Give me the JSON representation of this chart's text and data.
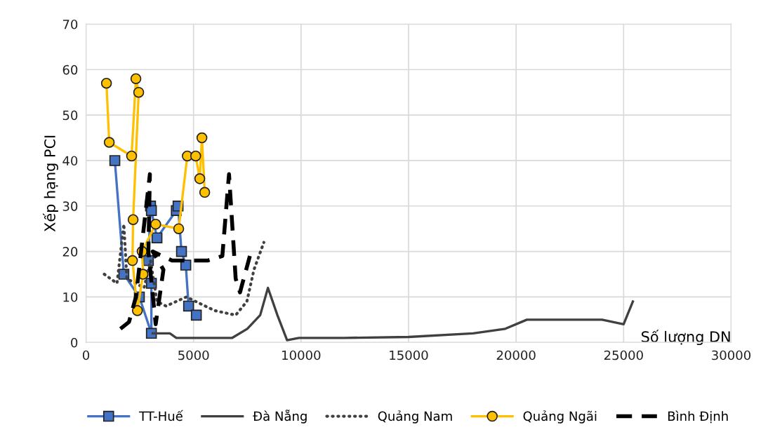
{
  "chart_data": {
    "type": "line",
    "xlabel": "Số lượng DN",
    "ylabel": "Xếp hạng PCI",
    "xlim": [
      0,
      30000
    ],
    "xticks": [
      0,
      5000,
      10000,
      15000,
      20000,
      25000,
      30000
    ],
    "ylim": [
      0,
      70
    ],
    "yticks": [
      0,
      10,
      20,
      30,
      40,
      50,
      60,
      70
    ],
    "grid": true,
    "legend": "bottom",
    "series": [
      {
        "name": "TT-Huế",
        "color": "#4472c4",
        "marker": "square",
        "line_style": "solid",
        "x": [
          1340,
          1760,
          2480,
          3040,
          3040,
          2900,
          3000,
          3040,
          3300,
          4200,
          4280,
          4440,
          4640,
          4770,
          5130
        ],
        "values": [
          40,
          15,
          10,
          2,
          13,
          18,
          30,
          29,
          23,
          29,
          30,
          20,
          17,
          8,
          6
        ]
      },
      {
        "name": "Đà Nẵng",
        "color": "#404040",
        "marker": "none",
        "line_style": "solid",
        "x": [
          3100,
          3900,
          4200,
          5000,
          6000,
          6800,
          7500,
          8100,
          8460,
          8900,
          9350,
          9900,
          12000,
          15000,
          18000,
          19500,
          20500,
          22000,
          24000,
          25000,
          25430
        ],
        "values": [
          2,
          2,
          1,
          1,
          1,
          1,
          3,
          6,
          12,
          6,
          0.5,
          1,
          1,
          1.2,
          2,
          3,
          5,
          5,
          5,
          4,
          9
        ]
      },
      {
        "name": "Quảng Nam",
        "color": "#404040",
        "marker": "none",
        "line_style": "dotted",
        "x": [
          850,
          1440,
          1760,
          1900,
          2700,
          3000,
          3300,
          3720,
          4670,
          5980,
          6960,
          7480,
          7810,
          8270
        ],
        "values": [
          15,
          13,
          26,
          14,
          12,
          18,
          9,
          8,
          10,
          7,
          6,
          9,
          16,
          22
        ]
      },
      {
        "name": "Quảng Ngãi",
        "color": "#ffc000",
        "marker": "circle",
        "line_style": "solid",
        "x": [
          950,
          1080,
          2120,
          2320,
          2450,
          2190,
          2160,
          2390,
          2650,
          2610,
          3240,
          4310,
          4710,
          5100,
          5290,
          5390,
          5520
        ],
        "values": [
          57,
          44,
          41,
          58,
          55,
          27,
          18,
          7,
          15,
          20,
          26,
          25,
          41,
          41,
          36,
          45,
          33
        ]
      },
      {
        "name": "Bình Định",
        "color": "#000000",
        "marker": "none",
        "line_style": "dashed",
        "x": [
          1600,
          2000,
          2320,
          2970,
          2900,
          3240,
          3600,
          3100,
          4000,
          5650,
          6340,
          6650,
          6960,
          7160,
          7620
        ],
        "values": [
          3,
          4.5,
          10,
          37,
          20,
          4,
          16,
          20,
          18,
          18,
          19,
          37,
          14,
          11,
          19
        ]
      }
    ]
  }
}
